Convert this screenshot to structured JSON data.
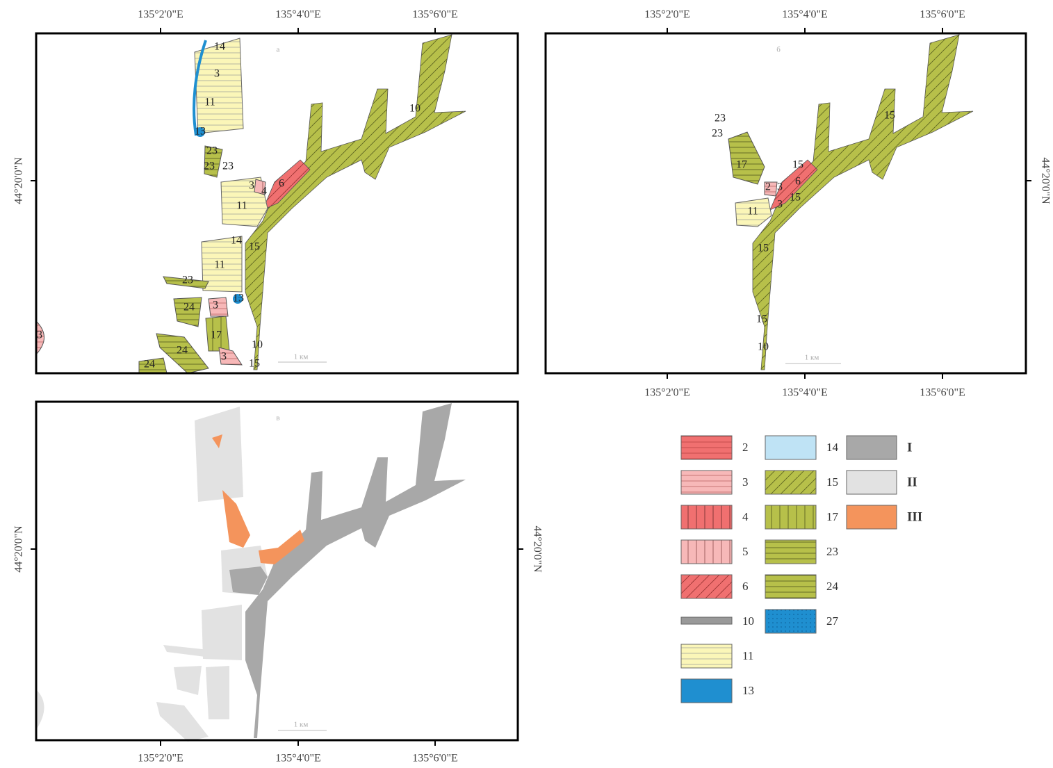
{
  "panels": [
    {
      "letter": "а",
      "scale": "1 км",
      "ticks_top": [
        "135°2'0\"E",
        "135°4'0\"E",
        "135°6'0\"E"
      ],
      "lat_left": "44°20'0\"N",
      "labels": [
        "14",
        "3",
        "11",
        "13",
        "23",
        "23",
        "23",
        "3",
        "4",
        "6",
        "11",
        "14",
        "15",
        "11",
        "23",
        "24",
        "3",
        "13",
        "3",
        "17",
        "24",
        "3",
        "10",
        "15",
        "24",
        "10"
      ]
    },
    {
      "letter": "б",
      "scale": "1 км",
      "ticks_top": [
        "135°2'0\"E",
        "135°4'0\"E",
        "135°6'0\"E"
      ],
      "ticks_bottom": [
        "135°2'0\"E",
        "135°4'0\"E",
        "135°6'0\"E"
      ],
      "lat_right": "44°20'0\"N",
      "labels": [
        "23",
        "23",
        "15",
        "17",
        "15",
        "2",
        "3",
        "6",
        "15",
        "3",
        "11",
        "15",
        "15",
        "10"
      ]
    },
    {
      "letter": "в",
      "scale": "1 км",
      "ticks_bottom": [
        "135°2'0\"E",
        "135°4'0\"E",
        "135°6'0\"E"
      ],
      "lat_left": "44°20'0\"N",
      "lat_right": "44°20'0\"N"
    }
  ],
  "legend": [
    "2",
    "3",
    "4",
    "5",
    "6",
    "10",
    "11",
    "13",
    "14",
    "15",
    "17",
    "23",
    "24",
    "27",
    "I",
    "II",
    "III"
  ]
}
